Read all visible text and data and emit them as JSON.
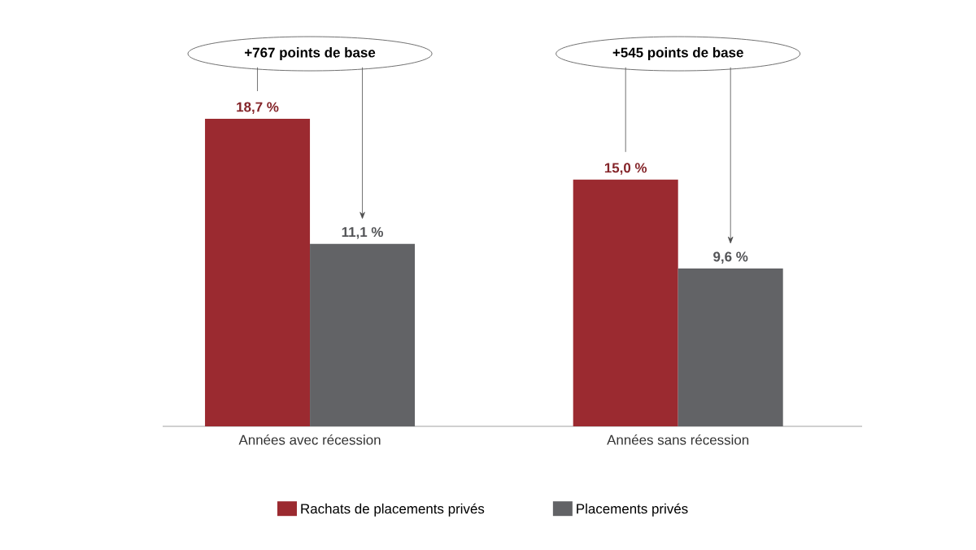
{
  "chart_data": {
    "type": "bar",
    "categories": [
      "Années avec récession",
      "Années sans récession"
    ],
    "series": [
      {
        "name": "Rachats de placements privés",
        "color": "#9b2a30",
        "values": [
          18.7,
          15.0
        ],
        "value_labels": [
          "18,7 %",
          "15,0 %"
        ]
      },
      {
        "name": "Placements privés",
        "color": "#626366",
        "values": [
          11.1,
          9.6
        ],
        "value_labels": [
          "11,1 %",
          "9,6 %"
        ]
      }
    ],
    "annotations": [
      "+767 points de base",
      "+545 points de base"
    ],
    "legend": "bottom"
  }
}
